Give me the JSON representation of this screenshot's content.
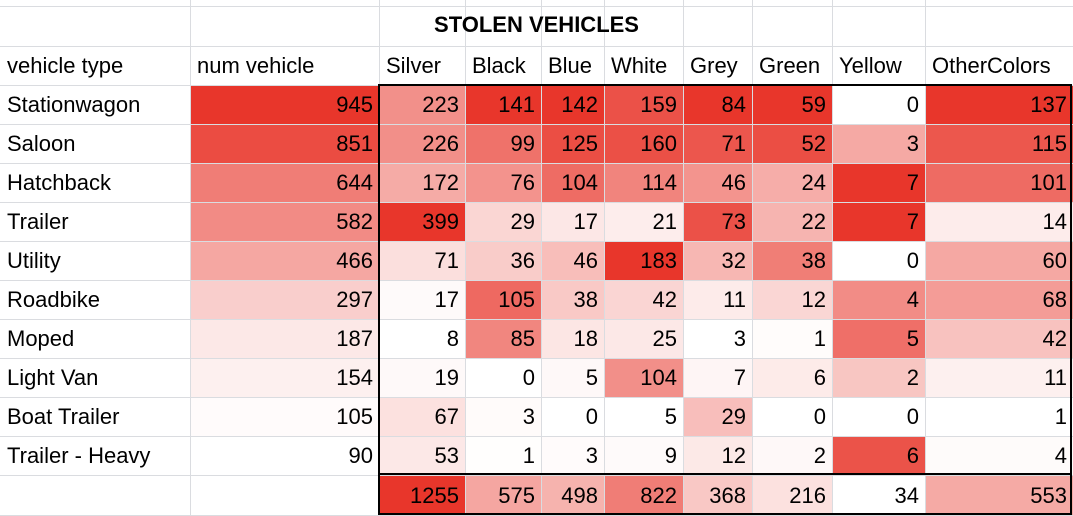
{
  "sheet": {
    "title": "STOLEN VEHICLES",
    "headers": [
      "vehicle type",
      "num vehicle",
      "Silver",
      "Black",
      "Blue",
      "White",
      "Grey",
      "Green",
      "Yellow",
      "OtherColors"
    ],
    "rows": [
      [
        "Stationwagon",
        945,
        223,
        141,
        142,
        159,
        84,
        59,
        0,
        137
      ],
      [
        "Saloon",
        851,
        226,
        99,
        125,
        160,
        71,
        52,
        3,
        115
      ],
      [
        "Hatchback",
        644,
        172,
        76,
        104,
        114,
        46,
        24,
        7,
        101
      ],
      [
        "Trailer",
        582,
        399,
        29,
        17,
        21,
        73,
        22,
        7,
        14
      ],
      [
        "Utility",
        466,
        71,
        36,
        46,
        183,
        32,
        38,
        0,
        60
      ],
      [
        "Roadbike",
        297,
        17,
        105,
        38,
        42,
        11,
        12,
        4,
        68
      ],
      [
        "Moped",
        187,
        8,
        85,
        18,
        25,
        3,
        1,
        5,
        42
      ],
      [
        "Light Van",
        154,
        19,
        0,
        5,
        104,
        7,
        6,
        2,
        11
      ],
      [
        "Boat Trailer",
        105,
        67,
        3,
        0,
        5,
        29,
        0,
        0,
        1
      ],
      [
        "Trailer - Heavy",
        90,
        53,
        1,
        3,
        9,
        12,
        2,
        6,
        4
      ]
    ],
    "totals": [
      "",
      "",
      1255,
      575,
      498,
      822,
      368,
      216,
      34,
      553
    ],
    "heat_color": "#e8362b"
  }
}
